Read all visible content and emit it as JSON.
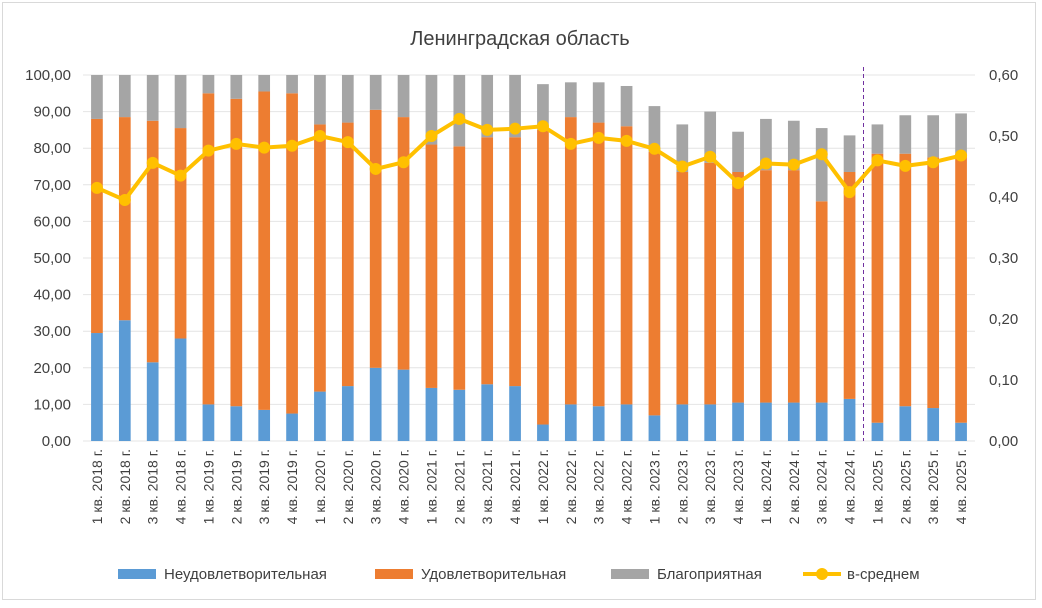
{
  "chart_data": {
    "type": "bar",
    "stacked": true,
    "title": "Ленинградская область",
    "categories": [
      "1 кв. 2018 г.",
      "2 кв. 2018 г.",
      "3 кв. 2018 г.",
      "4 кв. 2018 г.",
      "1 кв. 2019 г.",
      "2 кв. 2019 г.",
      "3 кв. 2019 г.",
      "4 кв. 2019 г.",
      "1 кв. 2020 г.",
      "2 кв. 2020 г.",
      "3 кв. 2020 г.",
      "4 кв. 2020 г.",
      "1 кв. 2021 г.",
      "2 кв. 2021 г.",
      "3 кв. 2021 г.",
      "4 кв. 2021 г.",
      "1 кв. 2022 г.",
      "2 кв. 2022 г.",
      "3 кв. 2022 г.",
      "4 кв. 2022 г.",
      "1 кв. 2023 г.",
      "2 кв. 2023 г.",
      "3 кв. 2023 г.",
      "4 кв. 2023 г.",
      "1 кв. 2024 г.",
      "2 кв. 2024 г.",
      "3 кв. 2024 г.",
      "4 кв. 2024 г.",
      "1 кв. 2025 г.",
      "2 кв. 2025 г.",
      "3 кв. 2025 г.",
      "4 кв. 2025 г."
    ],
    "series": [
      {
        "name": "Неудовлетворительная",
        "color": "#5b9bd5",
        "axis": "left",
        "values": [
          29.5,
          33,
          21.5,
          28,
          10,
          9.5,
          8.5,
          7.5,
          13.5,
          15,
          20,
          19.5,
          14.5,
          14,
          15.5,
          15,
          4.5,
          10,
          9.5,
          10,
          7,
          10,
          10,
          10.5,
          10.5,
          10.5,
          10.5,
          11.5,
          5,
          9.5,
          9,
          5
        ]
      },
      {
        "name": "Удовлетворительная",
        "color": "#ed7d31",
        "axis": "left",
        "values": [
          58.5,
          55.5,
          66,
          57.5,
          85,
          84,
          87,
          87.5,
          73,
          72,
          70.5,
          69,
          66.5,
          66.5,
          67.5,
          68,
          80.5,
          78.5,
          77.5,
          76,
          72,
          63.5,
          66,
          63,
          63.5,
          63.5,
          55,
          62,
          73.5,
          69,
          68.5,
          73.5
        ]
      },
      {
        "name": "Благоприятная",
        "color": "#a5a5a5",
        "axis": "left",
        "values": [
          12,
          11.5,
          12.5,
          14.5,
          5,
          6.5,
          4.5,
          5,
          13.5,
          13,
          9.5,
          11.5,
          19,
          19.5,
          17,
          17,
          12.5,
          9.5,
          11,
          11,
          12.5,
          13,
          14,
          11,
          14,
          13.5,
          20,
          10,
          8,
          10.5,
          11.5,
          11
        ]
      },
      {
        "name": "в-среднем",
        "type": "line",
        "color": "#ffc000",
        "axis": "right",
        "values": [
          0.415,
          0.395,
          0.456,
          0.435,
          0.476,
          0.487,
          0.481,
          0.484,
          0.5,
          0.49,
          0.446,
          0.457,
          0.5,
          0.528,
          0.51,
          0.512,
          0.516,
          0.487,
          0.497,
          0.492,
          0.479,
          0.45,
          0.466,
          0.423,
          0.455,
          0.453,
          0.47,
          0.408,
          0.46,
          0.451,
          0.457,
          0.468
        ]
      }
    ],
    "ylim": [
      0,
      100
    ],
    "y_ticks": [
      "0,00",
      "10,00",
      "20,00",
      "30,00",
      "40,00",
      "50,00",
      "60,00",
      "70,00",
      "80,00",
      "90,00",
      "100,00"
    ],
    "y2lim": [
      0,
      0.6
    ],
    "y2_ticks": [
      "0,00",
      "0,10",
      "0,20",
      "0,30",
      "0,40",
      "0,50",
      "0,60"
    ],
    "vertical_marker_after_category": "4 кв. 2024 г.",
    "grid": true,
    "legend_position": "bottom"
  }
}
